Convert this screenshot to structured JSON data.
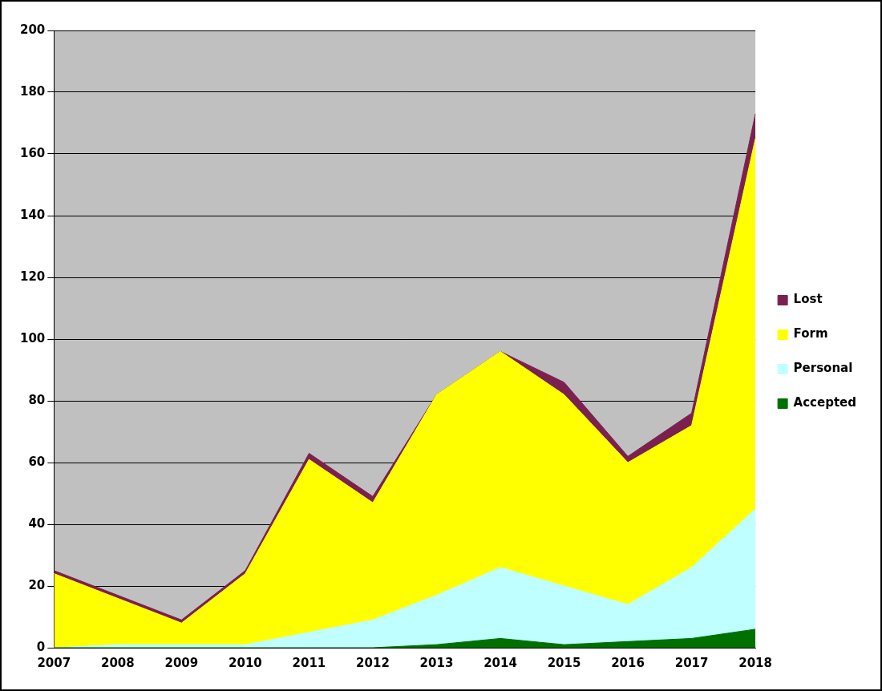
{
  "chart_data": {
    "type": "area",
    "categories": [
      "2007",
      "2008",
      "2009",
      "2010",
      "2011",
      "2012",
      "2013",
      "2014",
      "2015",
      "2016",
      "2017",
      "2018"
    ],
    "series": [
      {
        "name": "Accepted",
        "color": "#007000",
        "values": [
          0,
          0,
          0,
          0,
          0,
          0,
          1,
          3,
          1,
          2,
          3,
          6
        ]
      },
      {
        "name": "Personal",
        "color": "#C0FFFF",
        "values": [
          0,
          1,
          1,
          1,
          5,
          9,
          16,
          23,
          19,
          12,
          23,
          39
        ]
      },
      {
        "name": "Form",
        "color": "#FFFF00",
        "values": [
          24,
          15,
          7,
          23,
          56,
          38,
          65,
          70,
          62,
          46,
          46,
          120
        ]
      },
      {
        "name": "Lost",
        "color": "#7B2150",
        "values": [
          1,
          1,
          1,
          1,
          2,
          2,
          0,
          0,
          4,
          2,
          4,
          8
        ]
      }
    ],
    "ylim": [
      0,
      200
    ],
    "yticks": [
      0,
      20,
      40,
      60,
      80,
      100,
      120,
      140,
      160,
      180,
      200
    ],
    "stacked": true,
    "grid": true,
    "legend": "right"
  }
}
